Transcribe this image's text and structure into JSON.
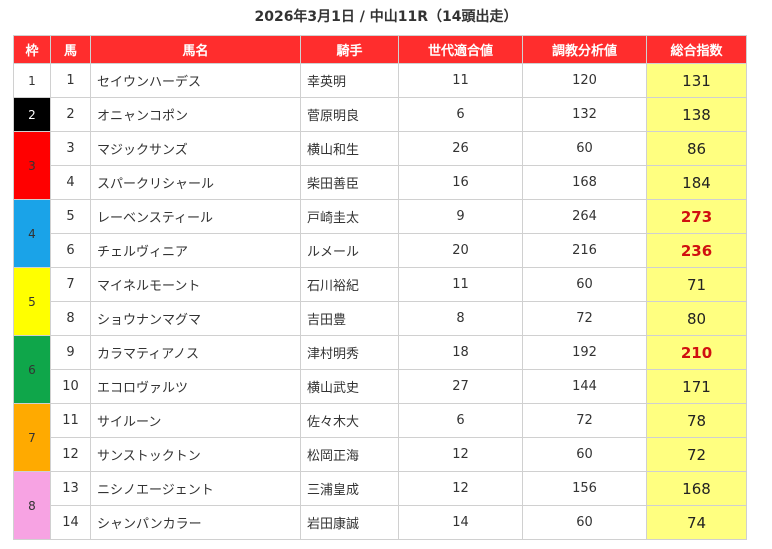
{
  "title": "2026年3月1日 / 中山11R（14頭出走）",
  "table": {
    "headers": [
      "枠",
      "馬",
      "馬名",
      "騎手",
      "世代適合値",
      "調教分析値",
      "総合指数"
    ],
    "frames": [
      {
        "label": "1",
        "color": "#ffffff",
        "text_color": "#333333",
        "rows": [
          {
            "number": 1,
            "name": "セイウンハーデス",
            "jockey": "幸英明",
            "generation": 11,
            "training": 120,
            "total": 131,
            "highlight": false
          }
        ]
      },
      {
        "label": "2",
        "color": "#000000",
        "text_color": "#ffffff",
        "rows": [
          {
            "number": 2,
            "name": "オニャンコポン",
            "jockey": "菅原明良",
            "generation": 6,
            "training": 132,
            "total": 138,
            "highlight": false
          }
        ]
      },
      {
        "label": "3",
        "color": "#ff0000",
        "text_color": "#333333",
        "rows": [
          {
            "number": 3,
            "name": "マジックサンズ",
            "jockey": "横山和生",
            "generation": 26,
            "training": 60,
            "total": 86,
            "highlight": false
          },
          {
            "number": 4,
            "name": "スパークリシャール",
            "jockey": "柴田善臣",
            "generation": 16,
            "training": 168,
            "total": 184,
            "highlight": false
          }
        ]
      },
      {
        "label": "4",
        "color": "#1aa3e8",
        "text_color": "#333333",
        "rows": [
          {
            "number": 5,
            "name": "レーベンスティール",
            "jockey": "戸崎圭太",
            "generation": 9,
            "training": 264,
            "total": 273,
            "highlight": true
          },
          {
            "number": 6,
            "name": "チェルヴィニア",
            "jockey": "ルメール",
            "generation": 20,
            "training": 216,
            "total": 236,
            "highlight": true
          }
        ]
      },
      {
        "label": "5",
        "color": "#ffff00",
        "text_color": "#333333",
        "rows": [
          {
            "number": 7,
            "name": "マイネルモーント",
            "jockey": "石川裕紀",
            "generation": 11,
            "training": 60,
            "total": 71,
            "highlight": false
          },
          {
            "number": 8,
            "name": "ショウナンマグマ",
            "jockey": "吉田豊",
            "generation": 8,
            "training": 72,
            "total": 80,
            "highlight": false
          }
        ]
      },
      {
        "label": "6",
        "color": "#0fa64a",
        "text_color": "#333333",
        "rows": [
          {
            "number": 9,
            "name": "カラマティアノス",
            "jockey": "津村明秀",
            "generation": 18,
            "training": 192,
            "total": 210,
            "highlight": true
          },
          {
            "number": 10,
            "name": "エコロヴァルツ",
            "jockey": "横山武史",
            "generation": 27,
            "training": 144,
            "total": 171,
            "highlight": false
          }
        ]
      },
      {
        "label": "7",
        "color": "#ffaa00",
        "text_color": "#333333",
        "rows": [
          {
            "number": 11,
            "name": "サイルーン",
            "jockey": "佐々木大",
            "generation": 6,
            "training": 72,
            "total": 78,
            "highlight": false
          },
          {
            "number": 12,
            "name": "サンストックトン",
            "jockey": "松岡正海",
            "generation": 12,
            "training": 60,
            "total": 72,
            "highlight": false
          }
        ]
      },
      {
        "label": "8",
        "color": "#f7a3e3",
        "text_color": "#333333",
        "rows": [
          {
            "number": 13,
            "name": "ニシノエージェント",
            "jockey": "三浦皇成",
            "generation": 12,
            "training": 156,
            "total": 168,
            "highlight": false
          },
          {
            "number": 14,
            "name": "シャンパンカラー",
            "jockey": "岩田康誠",
            "generation": 14,
            "training": 60,
            "total": 74,
            "highlight": false
          }
        ]
      }
    ]
  }
}
